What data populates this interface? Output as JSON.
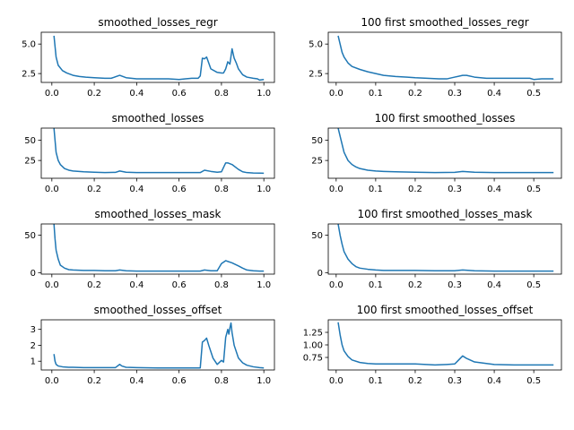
{
  "chart_data": [
    {
      "type": "line",
      "title": "smoothed_losses_regr",
      "xlim": [
        -0.05,
        1.05
      ],
      "ylim": [
        1.75,
        6.0
      ],
      "xticks": [
        0.0,
        0.2,
        0.4,
        0.6,
        0.8,
        1.0
      ],
      "xtick_labels": [
        "0.0",
        "0.2",
        "0.4",
        "0.6",
        "0.8",
        "1.0"
      ],
      "yticks": [
        2.5,
        5.0
      ],
      "ytick_labels": [
        "2.5",
        "5.0"
      ],
      "series": [
        {
          "color": "#1f77b4",
          "x": [
            0.01,
            0.02,
            0.03,
            0.05,
            0.07,
            0.1,
            0.13,
            0.16,
            0.2,
            0.25,
            0.28,
            0.32,
            0.35,
            0.4,
            0.45,
            0.5,
            0.55,
            0.6,
            0.63,
            0.66,
            0.69,
            0.7,
            0.71,
            0.72,
            0.73,
            0.75,
            0.78,
            0.8,
            0.81,
            0.82,
            0.83,
            0.84,
            0.85,
            0.86,
            0.87,
            0.88,
            0.9,
            0.92,
            0.95,
            0.97,
            0.98,
            1.0
          ],
          "y": [
            5.7,
            3.9,
            3.2,
            2.75,
            2.55,
            2.35,
            2.25,
            2.2,
            2.15,
            2.1,
            2.1,
            2.35,
            2.15,
            2.05,
            2.05,
            2.05,
            2.05,
            2.0,
            2.05,
            2.1,
            2.1,
            2.3,
            3.8,
            3.75,
            3.9,
            2.9,
            2.6,
            2.55,
            2.55,
            2.9,
            3.5,
            3.3,
            4.6,
            3.8,
            3.4,
            2.9,
            2.4,
            2.2,
            2.1,
            2.05,
            1.95,
            2.0
          ]
        }
      ]
    },
    {
      "type": "line",
      "title": "100 first smoothed_losses_regr",
      "xlim": [
        -0.02,
        0.57
      ],
      "ylim": [
        1.75,
        6.0
      ],
      "xticks": [
        0.0,
        0.1,
        0.2,
        0.3,
        0.4,
        0.5
      ],
      "xtick_labels": [
        "0.0",
        "0.1",
        "0.2",
        "0.3",
        "0.4",
        "0.5"
      ],
      "yticks": [
        2.5,
        5.0
      ],
      "ytick_labels": [
        "2.5",
        "5.0"
      ],
      "series": [
        {
          "color": "#1f77b4",
          "x": [
            0.005,
            0.01,
            0.015,
            0.02,
            0.03,
            0.04,
            0.06,
            0.08,
            0.1,
            0.12,
            0.15,
            0.18,
            0.2,
            0.23,
            0.26,
            0.28,
            0.3,
            0.32,
            0.33,
            0.35,
            0.38,
            0.4,
            0.43,
            0.46,
            0.49,
            0.5,
            0.52,
            0.55
          ],
          "y": [
            5.7,
            5.0,
            4.3,
            3.9,
            3.4,
            3.1,
            2.85,
            2.65,
            2.5,
            2.35,
            2.25,
            2.2,
            2.15,
            2.1,
            2.05,
            2.05,
            2.2,
            2.35,
            2.35,
            2.2,
            2.1,
            2.1,
            2.1,
            2.1,
            2.1,
            2.0,
            2.05,
            2.05
          ]
        }
      ]
    },
    {
      "type": "line",
      "title": "smoothed_losses",
      "xlim": [
        -0.05,
        1.05
      ],
      "ylim": [
        3.0,
        65.0
      ],
      "xticks": [
        0.0,
        0.2,
        0.4,
        0.6,
        0.8,
        1.0
      ],
      "xtick_labels": [
        "0.0",
        "0.2",
        "0.4",
        "0.6",
        "0.8",
        "1.0"
      ],
      "yticks": [
        25,
        50
      ],
      "ytick_labels": [
        "25",
        "50"
      ],
      "series": [
        {
          "color": "#1f77b4",
          "x": [
            0.01,
            0.015,
            0.02,
            0.03,
            0.04,
            0.06,
            0.08,
            0.1,
            0.15,
            0.2,
            0.25,
            0.3,
            0.32,
            0.35,
            0.4,
            0.5,
            0.6,
            0.7,
            0.72,
            0.75,
            0.78,
            0.8,
            0.82,
            0.83,
            0.85,
            0.88,
            0.9,
            0.92,
            0.95,
            0.98,
            1.0
          ],
          "y": [
            65,
            50,
            35,
            25,
            20,
            15,
            13,
            12,
            11,
            10.5,
            10,
            10.3,
            12,
            10.5,
            10,
            10,
            10,
            10,
            13,
            11.5,
            10.5,
            11,
            22,
            22,
            20,
            14,
            11,
            10,
            9.5,
            9.3,
            9.2
          ]
        }
      ]
    },
    {
      "type": "line",
      "title": "100 first smoothed_losses",
      "xlim": [
        -0.02,
        0.57
      ],
      "ylim": [
        3.0,
        65.0
      ],
      "xticks": [
        0.0,
        0.1,
        0.2,
        0.3,
        0.4,
        0.5
      ],
      "xtick_labels": [
        "0.0",
        "0.1",
        "0.2",
        "0.3",
        "0.4",
        "0.5"
      ],
      "yticks": [
        25,
        50
      ],
      "ytick_labels": [
        "25",
        "50"
      ],
      "series": [
        {
          "color": "#1f77b4",
          "x": [
            0.005,
            0.01,
            0.015,
            0.02,
            0.03,
            0.04,
            0.05,
            0.06,
            0.08,
            0.1,
            0.12,
            0.15,
            0.2,
            0.25,
            0.3,
            0.32,
            0.35,
            0.4,
            0.45,
            0.5,
            0.55
          ],
          "y": [
            65,
            55,
            45,
            35,
            25,
            20,
            17,
            15,
            13,
            12,
            11.5,
            11,
            10.5,
            10,
            10.3,
            11.5,
            10.5,
            10,
            10,
            10,
            10
          ]
        }
      ]
    },
    {
      "type": "line",
      "title": "smoothed_losses_mask",
      "xlim": [
        -0.05,
        1.05
      ],
      "ylim": [
        -2.0,
        65.0
      ],
      "xticks": [
        0.0,
        0.2,
        0.4,
        0.6,
        0.8,
        1.0
      ],
      "xtick_labels": [
        "0.0",
        "0.2",
        "0.4",
        "0.6",
        "0.8",
        "1.0"
      ],
      "yticks": [
        0,
        50
      ],
      "ytick_labels": [
        "0",
        "50"
      ],
      "series": [
        {
          "color": "#1f77b4",
          "x": [
            0.01,
            0.015,
            0.02,
            0.03,
            0.04,
            0.06,
            0.08,
            0.1,
            0.15,
            0.2,
            0.25,
            0.3,
            0.32,
            0.35,
            0.4,
            0.5,
            0.6,
            0.7,
            0.72,
            0.75,
            0.78,
            0.8,
            0.82,
            0.85,
            0.88,
            0.9,
            0.92,
            0.95,
            0.98,
            1.0
          ],
          "y": [
            65,
            45,
            30,
            18,
            10,
            6,
            4,
            3.5,
            3,
            3,
            2.5,
            2.5,
            3.5,
            2.5,
            2,
            2,
            2,
            2,
            3.5,
            2.5,
            2.5,
            12,
            16,
            13,
            9,
            6,
            3.5,
            2.5,
            2,
            2
          ]
        }
      ]
    },
    {
      "type": "line",
      "title": "100 first smoothed_losses_mask",
      "xlim": [
        -0.02,
        0.57
      ],
      "ylim": [
        -2.0,
        65.0
      ],
      "xticks": [
        0.0,
        0.1,
        0.2,
        0.3,
        0.4,
        0.5
      ],
      "xtick_labels": [
        "0.0",
        "0.1",
        "0.2",
        "0.3",
        "0.4",
        "0.5"
      ],
      "yticks": [
        0,
        50
      ],
      "ytick_labels": [
        "0",
        "50"
      ],
      "series": [
        {
          "color": "#1f77b4",
          "x": [
            0.005,
            0.01,
            0.015,
            0.02,
            0.03,
            0.04,
            0.05,
            0.06,
            0.08,
            0.1,
            0.12,
            0.15,
            0.2,
            0.25,
            0.3,
            0.32,
            0.35,
            0.4,
            0.45,
            0.5,
            0.55
          ],
          "y": [
            65,
            50,
            38,
            28,
            18,
            12,
            8,
            6,
            4.5,
            3.5,
            3,
            3,
            3,
            2.5,
            2.5,
            3.5,
            2.5,
            2,
            2,
            2,
            2
          ]
        }
      ]
    },
    {
      "type": "line",
      "title": "smoothed_losses_offset",
      "xlim": [
        -0.05,
        1.05
      ],
      "ylim": [
        0.45,
        3.6
      ],
      "xticks": [
        0.0,
        0.2,
        0.4,
        0.6,
        0.8,
        1.0
      ],
      "xtick_labels": [
        "0.0",
        "0.2",
        "0.4",
        "0.6",
        "0.8",
        "1.0"
      ],
      "yticks": [
        1,
        2,
        3
      ],
      "ytick_labels": [
        "1",
        "2",
        "3"
      ],
      "series": [
        {
          "color": "#1f77b4",
          "x": [
            0.01,
            0.015,
            0.02,
            0.03,
            0.05,
            0.08,
            0.1,
            0.15,
            0.2,
            0.25,
            0.3,
            0.32,
            0.33,
            0.35,
            0.4,
            0.5,
            0.6,
            0.7,
            0.71,
            0.72,
            0.73,
            0.74,
            0.76,
            0.78,
            0.8,
            0.81,
            0.82,
            0.83,
            0.835,
            0.84,
            0.845,
            0.85,
            0.86,
            0.88,
            0.9,
            0.92,
            0.95,
            0.98,
            1.0
          ],
          "y": [
            1.45,
            1.0,
            0.8,
            0.7,
            0.65,
            0.62,
            0.62,
            0.6,
            0.6,
            0.6,
            0.6,
            0.8,
            0.7,
            0.62,
            0.6,
            0.58,
            0.58,
            0.58,
            2.2,
            2.3,
            2.45,
            2.0,
            1.2,
            0.8,
            1.05,
            0.95,
            2.5,
            3.0,
            2.7,
            3.1,
            3.4,
            2.8,
            2.0,
            1.2,
            0.9,
            0.75,
            0.65,
            0.6,
            0.58
          ]
        }
      ]
    },
    {
      "type": "line",
      "title": "100 first smoothed_losses_offset",
      "xlim": [
        -0.02,
        0.57
      ],
      "ylim": [
        0.5,
        1.5
      ],
      "xticks": [
        0.0,
        0.1,
        0.2,
        0.3,
        0.4,
        0.5
      ],
      "xtick_labels": [
        "0.0",
        "0.1",
        "0.2",
        "0.3",
        "0.4",
        "0.5"
      ],
      "yticks": [
        0.75,
        1.0,
        1.25
      ],
      "ytick_labels": [
        "0.75",
        "1.00",
        "1.25"
      ],
      "series": [
        {
          "color": "#1f77b4",
          "x": [
            0.005,
            0.01,
            0.015,
            0.02,
            0.03,
            0.04,
            0.06,
            0.08,
            0.1,
            0.12,
            0.15,
            0.18,
            0.2,
            0.25,
            0.28,
            0.3,
            0.31,
            0.32,
            0.33,
            0.35,
            0.38,
            0.4,
            0.45,
            0.5,
            0.55
          ],
          "y": [
            1.45,
            1.2,
            1.0,
            0.88,
            0.77,
            0.7,
            0.65,
            0.63,
            0.62,
            0.62,
            0.62,
            0.62,
            0.62,
            0.6,
            0.61,
            0.62,
            0.7,
            0.78,
            0.73,
            0.66,
            0.63,
            0.61,
            0.6,
            0.6,
            0.6
          ]
        }
      ]
    }
  ]
}
